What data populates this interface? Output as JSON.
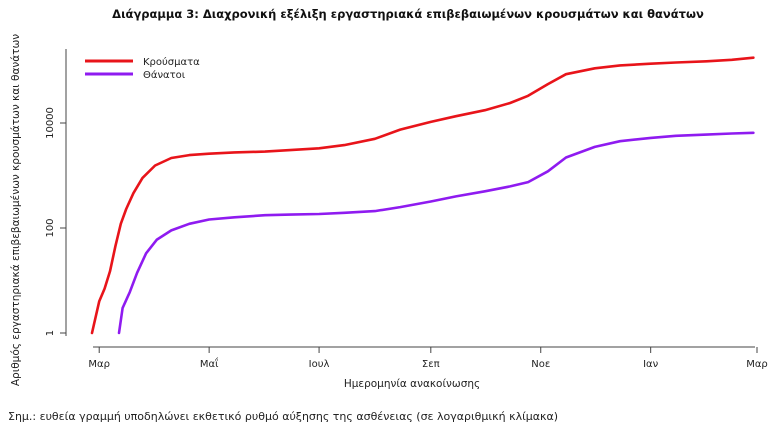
{
  "chart_data": {
    "type": "line",
    "title": "Διάγραμμα 3: Διαχρονική εξέλιξη εργαστηριακά επιβεβαιωμένων κρουσμάτων και θανάτων",
    "xlabel": "Ημερομηνία ανακοίνωσης",
    "ylabel": "Αριθμός εργαστηριακά επιβεβαιωμένων κρουσμάτων και θανάτων",
    "y_scale": "log",
    "ylim": [
      1,
      200000
    ],
    "y_ticks": [
      1,
      100,
      10000
    ],
    "y_tick_labels": [
      "1",
      "100",
      "10000"
    ],
    "xlim": [
      "2020-02-26",
      "2021-03-01"
    ],
    "x_ticks": [
      "2020-03-01",
      "2020-05-01",
      "2020-07-01",
      "2020-09-01",
      "2020-11-01",
      "2021-01-01",
      "2021-03-01"
    ],
    "x_tick_labels": [
      "Μαρ",
      "Μαΐ",
      "Ιουλ",
      "Σεπ",
      "Νοε",
      "Ιαν",
      "Μαρ"
    ],
    "grid": false,
    "legend_position": "top-left",
    "series": [
      {
        "name": "Κρούσματα",
        "color": "#e8141a",
        "x": [
          "2020-02-26",
          "2020-03-01",
          "2020-03-04",
          "2020-03-07",
          "2020-03-10",
          "2020-03-13",
          "2020-03-16",
          "2020-03-20",
          "2020-03-25",
          "2020-04-01",
          "2020-04-10",
          "2020-04-20",
          "2020-05-01",
          "2020-05-15",
          "2020-06-01",
          "2020-06-15",
          "2020-07-01",
          "2020-07-15",
          "2020-08-01",
          "2020-08-15",
          "2020-09-01",
          "2020-09-15",
          "2020-10-01",
          "2020-10-15",
          "2020-10-25",
          "2020-11-05",
          "2020-11-15",
          "2020-12-01",
          "2020-12-15",
          "2021-01-01",
          "2021-01-15",
          "2021-02-01",
          "2021-02-15",
          "2021-02-27"
        ],
        "y": [
          1,
          4,
          7,
          15,
          45,
          120,
          230,
          460,
          900,
          1550,
          2150,
          2450,
          2600,
          2750,
          2850,
          3050,
          3300,
          3800,
          5000,
          7500,
          10500,
          13500,
          17500,
          24000,
          33000,
          55000,
          85000,
          110000,
          125000,
          135000,
          142000,
          150000,
          160000,
          175000
        ]
      },
      {
        "name": "Θάνατοι",
        "color": "#8f1bf0",
        "x": [
          "2020-03-12",
          "2020-03-14",
          "2020-03-18",
          "2020-03-22",
          "2020-03-27",
          "2020-04-02",
          "2020-04-10",
          "2020-04-20",
          "2020-05-01",
          "2020-05-15",
          "2020-06-01",
          "2020-06-15",
          "2020-07-01",
          "2020-07-15",
          "2020-08-01",
          "2020-08-15",
          "2020-09-01",
          "2020-09-15",
          "2020-10-01",
          "2020-10-15",
          "2020-10-25",
          "2020-11-05",
          "2020-11-15",
          "2020-12-01",
          "2020-12-15",
          "2021-01-01",
          "2021-01-15",
          "2021-02-01",
          "2021-02-15",
          "2021-02-27"
        ],
        "y": [
          1,
          3,
          6,
          14,
          33,
          60,
          90,
          120,
          145,
          160,
          175,
          180,
          185,
          195,
          210,
          250,
          320,
          400,
          500,
          620,
          750,
          1200,
          2200,
          3500,
          4500,
          5200,
          5700,
          6000,
          6300,
          6500
        ]
      }
    ]
  },
  "footnote": "Σημ.: ευθεία γραμμή υποδηλώνει εκθετικό ρυθμό αύξησης της ασθένειας (σε λογαριθμική κλίμακα)"
}
